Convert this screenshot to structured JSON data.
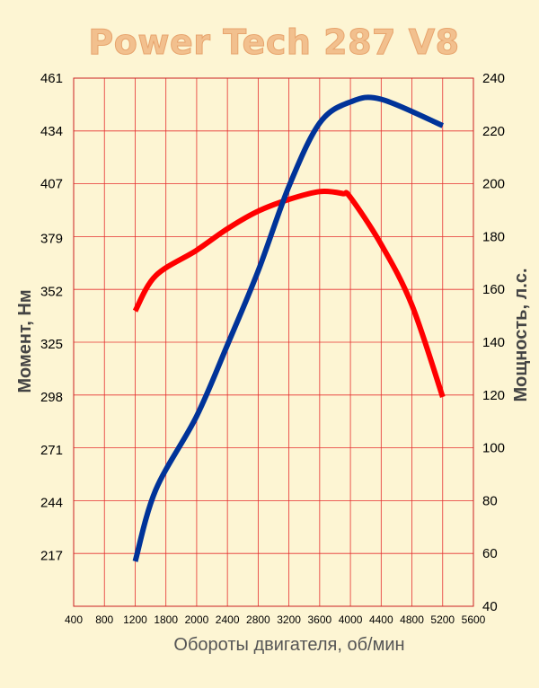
{
  "chart_data": {
    "type": "line",
    "title": "Power Tech 287 V8",
    "xlabel": "Обороты двигателя, об/мин",
    "ylabel_left": "Момент, Нм",
    "ylabel_right": "Мощность, л.с.",
    "x_ticks": [
      "400",
      "800",
      "1200",
      "1800",
      "2000",
      "2400",
      "2800",
      "3200",
      "3600",
      "4000",
      "4400",
      "4800",
      "5200",
      "5600"
    ],
    "y_left_ticks": [
      "217",
      "244",
      "271",
      "298",
      "325",
      "352",
      "379",
      "407",
      "434",
      "461"
    ],
    "y_right_ticks": [
      "40",
      "60",
      "80",
      "100",
      "120",
      "140",
      "160",
      "180",
      "200",
      "220",
      "240"
    ],
    "y_left_range": [
      191,
      461
    ],
    "y_right_range": [
      40,
      240
    ],
    "grid": true,
    "series": [
      {
        "axis": "left",
        "color": "#ff0000",
        "points": [
          [
            1200,
            342
          ],
          [
            1600,
            360
          ],
          [
            2000,
            373
          ],
          [
            2400,
            384
          ],
          [
            2800,
            393
          ],
          [
            3200,
            399
          ],
          [
            3600,
            403
          ],
          [
            3900,
            402
          ],
          [
            4000,
            400
          ],
          [
            4400,
            376
          ],
          [
            4800,
            345
          ],
          [
            5200,
            298
          ]
        ]
      },
      {
        "axis": "right",
        "color": "#003399",
        "points": [
          [
            1200,
            57
          ],
          [
            1600,
            84
          ],
          [
            2000,
            112
          ],
          [
            2400,
            139
          ],
          [
            2800,
            167
          ],
          [
            3200,
            199
          ],
          [
            3600,
            223
          ],
          [
            4000,
            231
          ],
          [
            4400,
            232
          ],
          [
            5200,
            222
          ]
        ]
      }
    ]
  }
}
